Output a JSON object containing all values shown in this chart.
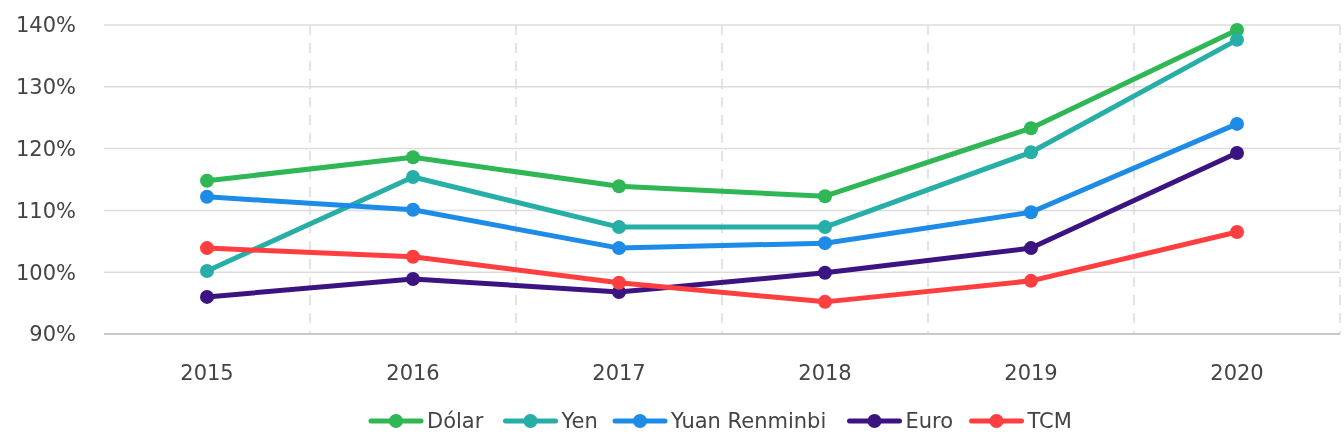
{
  "chart_data": {
    "type": "line",
    "categories": [
      "2015",
      "2016",
      "2017",
      "2018",
      "2019",
      "2020"
    ],
    "ylim": [
      90,
      140
    ],
    "yticks": [
      {
        "value": 90,
        "label": "90%"
      },
      {
        "value": 100,
        "label": "100%"
      },
      {
        "value": 110,
        "label": "110%"
      },
      {
        "value": 120,
        "label": "120%"
      },
      {
        "value": 130,
        "label": "130%"
      },
      {
        "value": 140,
        "label": "140%"
      }
    ],
    "grid": true,
    "legend": "bottom",
    "marker": "circle",
    "line_style": "solid",
    "series": [
      {
        "name": "Dólar",
        "color": "#2fb655",
        "values": [
          114.8,
          118.6,
          113.9,
          112.3,
          123.3,
          139.2
        ]
      },
      {
        "name": "Yen",
        "color": "#27aea6",
        "values": [
          100.2,
          115.4,
          107.3,
          107.3,
          119.4,
          137.6
        ]
      },
      {
        "name": "Yuan Renminbi",
        "color": "#1e8be6",
        "values": [
          112.2,
          110.1,
          103.9,
          104.7,
          109.7,
          124.0
        ]
      },
      {
        "name": "Euro",
        "color": "#3b1482",
        "values": [
          96.0,
          98.9,
          96.8,
          99.9,
          103.9,
          119.3
        ]
      },
      {
        "name": "TCM",
        "color": "#ff3f3f",
        "values": [
          103.9,
          102.5,
          98.3,
          95.2,
          98.6,
          106.5
        ]
      }
    ]
  }
}
